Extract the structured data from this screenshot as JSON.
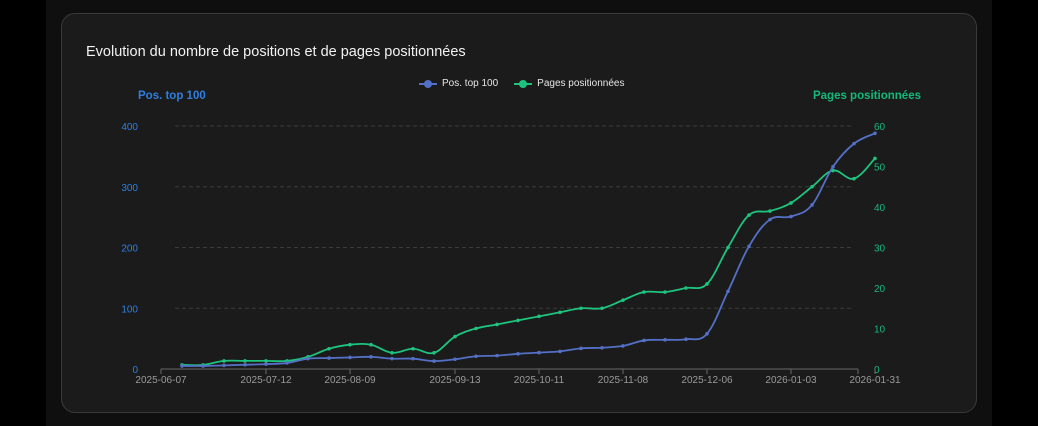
{
  "card": {
    "title": "Evolution du nombre de positions et de pages positionnées"
  },
  "legend": [
    {
      "label": "Pos. top 100",
      "color": "#5470c6"
    },
    {
      "label": "Pages positionnées",
      "color": "#1ec47e"
    }
  ],
  "axes": {
    "left_title": "Pos. top 100",
    "left_color": "#2f7fe0",
    "right_title": "Pages positionnées",
    "right_color": "#14b97a"
  },
  "chart_data": {
    "type": "line",
    "title": "Evolution du nombre de positions et de pages positionnées",
    "xlabel": "",
    "ylabel": "Pos. top 100",
    "y2label": "Pages positionnées",
    "ylim": [
      0,
      400
    ],
    "y2lim": [
      0,
      60
    ],
    "yticks": [
      0,
      100,
      200,
      300,
      400
    ],
    "y2ticks": [
      0,
      10,
      20,
      30,
      40,
      50,
      60
    ],
    "xtick_labels": [
      "2025-06-07",
      "2025-07-12",
      "2025-08-09",
      "2025-09-13",
      "2025-10-11",
      "2025-11-08",
      "2025-12-06",
      "2026-01-03",
      "2026-01-31"
    ],
    "grid": true,
    "legend_position": "top",
    "x": [
      "2025-06-14",
      "2025-06-21",
      "2025-06-28",
      "2025-07-05",
      "2025-07-12",
      "2025-07-19",
      "2025-07-26",
      "2025-08-02",
      "2025-08-09",
      "2025-08-16",
      "2025-08-23",
      "2025-08-30",
      "2025-09-06",
      "2025-09-13",
      "2025-09-20",
      "2025-09-27",
      "2025-10-04",
      "2025-10-11",
      "2025-10-18",
      "2025-10-25",
      "2025-11-01",
      "2025-11-08",
      "2025-11-15",
      "2025-11-22",
      "2025-11-29",
      "2025-12-06",
      "2025-12-13",
      "2025-12-20",
      "2025-12-27",
      "2026-01-03",
      "2026-01-10",
      "2026-01-17",
      "2026-01-24",
      "2026-01-31"
    ],
    "series": [
      {
        "name": "Pos. top 100",
        "axis": "left",
        "color": "#5470c6",
        "values": [
          5,
          5,
          6,
          7,
          8,
          10,
          17,
          18,
          19,
          20,
          17,
          17,
          13,
          16,
          21,
          22,
          25,
          27,
          29,
          34,
          35,
          38,
          47,
          48,
          49,
          58,
          128,
          202,
          246,
          251,
          270,
          333,
          371,
          388
        ]
      },
      {
        "name": "Pages positionnées",
        "axis": "right",
        "color": "#1ec47e",
        "values": [
          1,
          1,
          2,
          2,
          2,
          2,
          3,
          5,
          6,
          6,
          4,
          5,
          4,
          8,
          10,
          11,
          12,
          13,
          14,
          15,
          15,
          17,
          19,
          19,
          20,
          21,
          30,
          38,
          39,
          41,
          45,
          49,
          47,
          52
        ]
      }
    ]
  }
}
